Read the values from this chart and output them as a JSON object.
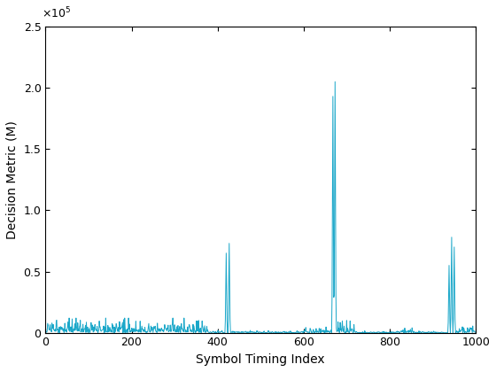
{
  "xlabel": "Symbol Timing Index",
  "ylabel": "Decision Metric (M)",
  "xlim": [
    0,
    1000
  ],
  "ylim": [
    0,
    250000
  ],
  "line_color": "#1aa7c9",
  "line_width": 0.7,
  "figsize": [
    5.6,
    4.2
  ],
  "dpi": 100
}
